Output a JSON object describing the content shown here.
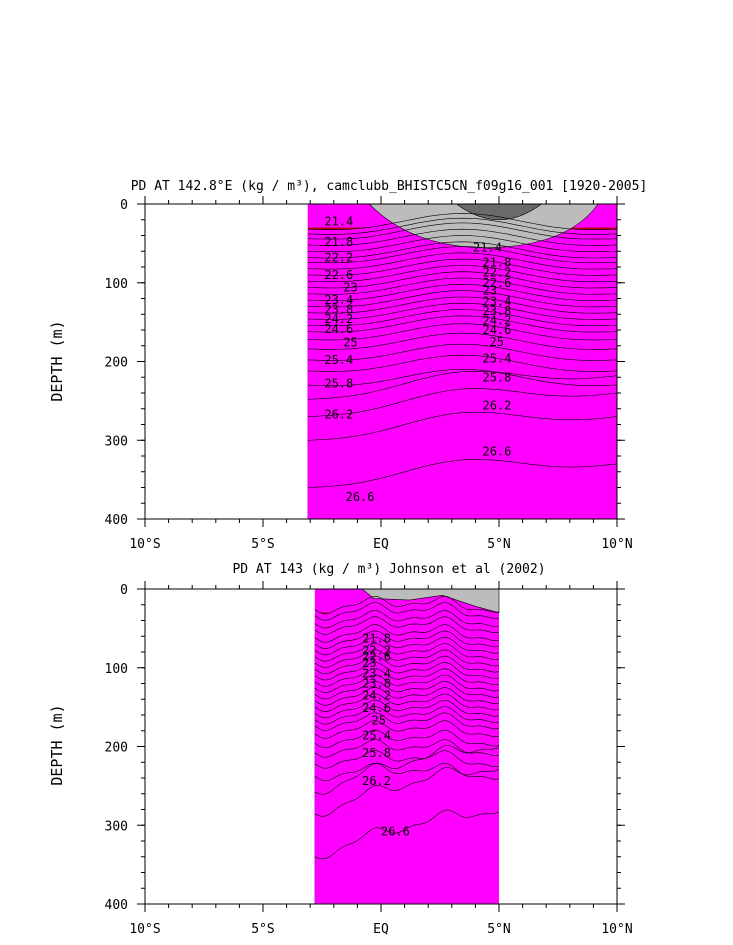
{
  "chart_data": [
    {
      "type": "contour",
      "title": "PD AT 142.8°E (kg / m³), camclubb_BHISTC5CN_f09g16_001 [1920-2005]",
      "ylabel": "DEPTH (m)",
      "xlabel": "",
      "x_ticks": [
        "10°S",
        "5°S",
        "EQ",
        "5°N",
        "10°N"
      ],
      "y_ticks": [
        "0",
        "100",
        "200",
        "300",
        "400"
      ],
      "xlim": [
        -10,
        10
      ],
      "ylim": [
        400,
        0
      ],
      "data_extent_lat": [
        -3.1,
        10
      ],
      "contour_levels": [
        21.4,
        21.6,
        21.8,
        22.0,
        22.2,
        22.4,
        22.6,
        22.8,
        23.0,
        23.2,
        23.4,
        23.6,
        23.8,
        24.0,
        24.2,
        24.4,
        24.6,
        24.8,
        25.0,
        25.2,
        25.4,
        25.6,
        25.8,
        26.0,
        26.2,
        26.4,
        26.6
      ],
      "labeled_contours": [
        {
          "text": "21.4",
          "lat": -2.4,
          "depth": 22
        },
        {
          "text": "21.8",
          "lat": -2.4,
          "depth": 48
        },
        {
          "text": "22.2",
          "lat": -2.4,
          "depth": 68
        },
        {
          "text": "22.6",
          "lat": -2.4,
          "depth": 90
        },
        {
          "text": "23",
          "lat": -1.6,
          "depth": 106
        },
        {
          "text": "23.4",
          "lat": -2.4,
          "depth": 122
        },
        {
          "text": "23.8",
          "lat": -2.4,
          "depth": 134
        },
        {
          "text": "24.2",
          "lat": -2.4,
          "depth": 146
        },
        {
          "text": "24.6",
          "lat": -2.4,
          "depth": 159
        },
        {
          "text": "25",
          "lat": -1.6,
          "depth": 176
        },
        {
          "text": "25.4",
          "lat": -2.4,
          "depth": 198
        },
        {
          "text": "25.8",
          "lat": -2.4,
          "depth": 228
        },
        {
          "text": "26.2",
          "lat": -2.4,
          "depth": 267
        },
        {
          "text": "26.6",
          "lat": -1.5,
          "depth": 372
        },
        {
          "text": "21.4",
          "lat": 3.9,
          "depth": 55
        },
        {
          "text": "21.8",
          "lat": 4.3,
          "depth": 74
        },
        {
          "text": "22.2",
          "lat": 4.3,
          "depth": 87
        },
        {
          "text": "22.6",
          "lat": 4.3,
          "depth": 100
        },
        {
          "text": "23",
          "lat": 4.3,
          "depth": 110
        },
        {
          "text": "23.4",
          "lat": 4.3,
          "depth": 124
        },
        {
          "text": "23.8",
          "lat": 4.3,
          "depth": 136
        },
        {
          "text": "24.2",
          "lat": 4.3,
          "depth": 148
        },
        {
          "text": "24.6",
          "lat": 4.3,
          "depth": 160
        },
        {
          "text": "25",
          "lat": 4.6,
          "depth": 175
        },
        {
          "text": "25.4",
          "lat": 4.3,
          "depth": 196
        },
        {
          "text": "25.8",
          "lat": 4.3,
          "depth": 220
        },
        {
          "text": "26.2",
          "lat": 4.3,
          "depth": 256
        },
        {
          "text": "26.6",
          "lat": 4.3,
          "depth": 314
        }
      ]
    },
    {
      "type": "contour",
      "title": "PD AT 143 (kg / m³) Johnson et al (2002)",
      "ylabel": "DEPTH (m)",
      "xlabel": "",
      "x_ticks": [
        "10°S",
        "5°S",
        "EQ",
        "5°N",
        "10°N"
      ],
      "y_ticks": [
        "0",
        "100",
        "200",
        "300",
        "400"
      ],
      "xlim": [
        -10,
        10
      ],
      "ylim": [
        400,
        0
      ],
      "data_extent_lat": [
        -2.8,
        5
      ],
      "contour_levels": [
        21.4,
        21.6,
        21.8,
        22.0,
        22.2,
        22.4,
        22.6,
        22.8,
        23.0,
        23.2,
        23.4,
        23.6,
        23.8,
        24.0,
        24.2,
        24.4,
        24.6,
        24.8,
        25.0,
        25.2,
        25.4,
        25.6,
        25.8,
        26.0,
        26.2,
        26.4,
        26.6
      ],
      "labeled_contours": [
        {
          "text": "21.8",
          "lat": -0.8,
          "depth": 63
        },
        {
          "text": "22.2",
          "lat": -0.8,
          "depth": 78
        },
        {
          "text": "22.6",
          "lat": -0.8,
          "depth": 86
        },
        {
          "text": "23",
          "lat": -0.8,
          "depth": 94
        },
        {
          "text": "23.4",
          "lat": -0.8,
          "depth": 107
        },
        {
          "text": "23.8",
          "lat": -0.8,
          "depth": 120
        },
        {
          "text": "24.2",
          "lat": -0.8,
          "depth": 135
        },
        {
          "text": "24.6",
          "lat": -0.8,
          "depth": 151
        },
        {
          "text": "25",
          "lat": -0.4,
          "depth": 167
        },
        {
          "text": "25.4",
          "lat": -0.8,
          "depth": 186
        },
        {
          "text": "25.8",
          "lat": -0.8,
          "depth": 208
        },
        {
          "text": "26.2",
          "lat": -0.8,
          "depth": 244
        },
        {
          "text": "26.6",
          "lat": 0.0,
          "depth": 308
        }
      ]
    }
  ]
}
